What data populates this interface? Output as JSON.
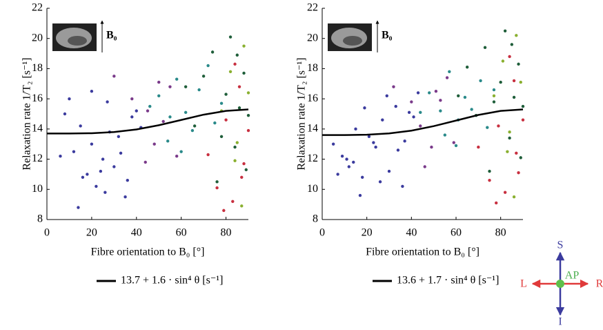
{
  "chart_data": [
    {
      "type": "scatter",
      "y_label": "Relaxation rate 1/T₂ [s⁻¹]",
      "x_label": "Fibre orientation to B₀ [°]",
      "inset_label": "B₀",
      "xlim": [
        0,
        90
      ],
      "xticks": [
        0,
        20,
        40,
        60,
        80
      ],
      "ylim": [
        8,
        22
      ],
      "yticks": [
        8,
        10,
        12,
        14,
        16,
        18,
        20,
        22
      ],
      "point_groups": [
        {
          "color": "#3b3b9e",
          "x": [
            8,
            12,
            15,
            18,
            20,
            22,
            25,
            27,
            30,
            32,
            35,
            38,
            10,
            16,
            24,
            28,
            33,
            40,
            14,
            20,
            26,
            36,
            42,
            6
          ],
          "y": [
            15,
            12.5,
            14.2,
            11,
            13,
            10.2,
            12,
            15.8,
            11.5,
            13.5,
            9.5,
            14.8,
            16,
            10.8,
            11.2,
            13.8,
            12.4,
            15.2,
            8.8,
            16.5,
            9.8,
            10.6,
            14.1,
            12.2
          ]
        },
        {
          "color": "#7a3a8a",
          "x": [
            30,
            38,
            45,
            48,
            52,
            55,
            58,
            44,
            50
          ],
          "y": [
            17.5,
            16,
            15.2,
            13,
            14.5,
            16.8,
            12.2,
            11.8,
            17.1
          ]
        },
        {
          "color": "#2a8a8a",
          "x": [
            46,
            50,
            55,
            58,
            62,
            65,
            68,
            72,
            75,
            78,
            54,
            60
          ],
          "y": [
            15.5,
            16.2,
            14.8,
            17.3,
            15.1,
            13.9,
            16.6,
            18.2,
            14.4,
            15.7,
            13.2,
            12.5
          ]
        },
        {
          "color": "#1f5e3a",
          "x": [
            62,
            66,
            70,
            74,
            78,
            80,
            82,
            84,
            86,
            88,
            90,
            76,
            85,
            89
          ],
          "y": [
            16.8,
            14.2,
            17.5,
            19.1,
            13.5,
            16.3,
            20.1,
            12.8,
            15.4,
            17.7,
            14.9,
            10.5,
            18.9,
            11.3
          ]
        },
        {
          "color": "#c83040",
          "x": [
            72,
            76,
            80,
            83,
            86,
            88,
            90,
            79,
            84,
            87
          ],
          "y": [
            12.3,
            10.1,
            14.6,
            9.2,
            16.8,
            11.7,
            13.9,
            8.6,
            18.3,
            10.8
          ]
        },
        {
          "color": "#8ab030",
          "x": [
            78,
            82,
            85,
            88,
            90,
            84,
            87
          ],
          "y": [
            15.2,
            17.8,
            13.1,
            19.5,
            16.4,
            11.9,
            8.9
          ]
        }
      ],
      "series": [
        {
          "name": "13.7 + 1.6 · sin⁴ θ [s⁻¹]",
          "color": "#000000",
          "x": [
            0,
            10,
            20,
            30,
            40,
            50,
            60,
            70,
            80,
            90
          ],
          "values": [
            13.7,
            13.7,
            13.72,
            13.8,
            13.97,
            14.25,
            14.6,
            14.95,
            15.2,
            15.3
          ]
        }
      ]
    },
    {
      "type": "scatter",
      "y_label": "Relaxation rate 1/T₂ [s⁻¹]",
      "x_label": "Fibre orientation to B₀ [°]",
      "inset_label": "B₀",
      "xlim": [
        0,
        90
      ],
      "xticks": [
        0,
        20,
        40,
        60,
        80
      ],
      "ylim": [
        8,
        22
      ],
      "yticks": [
        8,
        10,
        12,
        14,
        16,
        18,
        20,
        22
      ],
      "point_groups": [
        {
          "color": "#3b3b9e",
          "x": [
            5,
            9,
            12,
            15,
            18,
            21,
            24,
            27,
            30,
            33,
            36,
            39,
            11,
            17,
            23,
            29,
            34,
            41,
            14,
            19,
            26,
            37,
            43,
            7
          ],
          "y": [
            13,
            12.2,
            11.5,
            14,
            10.8,
            13.5,
            12.8,
            14.6,
            11.2,
            15.5,
            10.2,
            15.1,
            12,
            9.6,
            13.1,
            16.2,
            12.6,
            14.8,
            11.8,
            15.4,
            10.5,
            13.2,
            16.4,
            11
          ]
        },
        {
          "color": "#7a3a8a",
          "x": [
            32,
            40,
            44,
            49,
            53,
            56,
            59,
            46,
            51
          ],
          "y": [
            16.8,
            15.8,
            14.2,
            12.8,
            15.9,
            17.4,
            13.1,
            11.5,
            16.5
          ]
        },
        {
          "color": "#2a8a8a",
          "x": [
            44,
            48,
            53,
            57,
            61,
            64,
            67,
            71,
            74,
            77,
            55,
            60
          ],
          "y": [
            15.1,
            16.4,
            15.2,
            17.8,
            14.6,
            16.1,
            15.3,
            17.2,
            14.1,
            16.6,
            13.6,
            12.9
          ]
        },
        {
          "color": "#1f5e3a",
          "x": [
            61,
            65,
            69,
            73,
            77,
            80,
            82,
            84,
            86,
            88,
            90,
            75,
            85,
            89
          ],
          "y": [
            16.2,
            18.1,
            14.9,
            19.4,
            15.8,
            17.1,
            20.5,
            13.4,
            16.1,
            18.3,
            15.5,
            11.2,
            19.6,
            12.1
          ]
        },
        {
          "color": "#c83040",
          "x": [
            70,
            75,
            79,
            82,
            86,
            88,
            90,
            78,
            84,
            87
          ],
          "y": [
            12.8,
            10.6,
            14.2,
            9.8,
            17.2,
            11.1,
            14.6,
            9.1,
            18.8,
            12.4
          ]
        },
        {
          "color": "#8ab030",
          "x": [
            77,
            81,
            84,
            87,
            89,
            83,
            86
          ],
          "y": [
            16.2,
            18.5,
            13.8,
            20.2,
            17.1,
            12.5,
            9.5
          ]
        }
      ],
      "series": [
        {
          "name": "13.6 + 1.7 · sin⁴ θ [s⁻¹]",
          "color": "#000000",
          "x": [
            0,
            10,
            20,
            30,
            40,
            50,
            60,
            70,
            80,
            90
          ],
          "values": [
            13.6,
            13.6,
            13.62,
            13.71,
            13.89,
            14.19,
            14.56,
            14.93,
            15.2,
            15.3
          ]
        }
      ]
    }
  ],
  "orientation_key": {
    "top": "S",
    "bottom": "I",
    "left": "L",
    "right": "R",
    "center": "AP"
  }
}
